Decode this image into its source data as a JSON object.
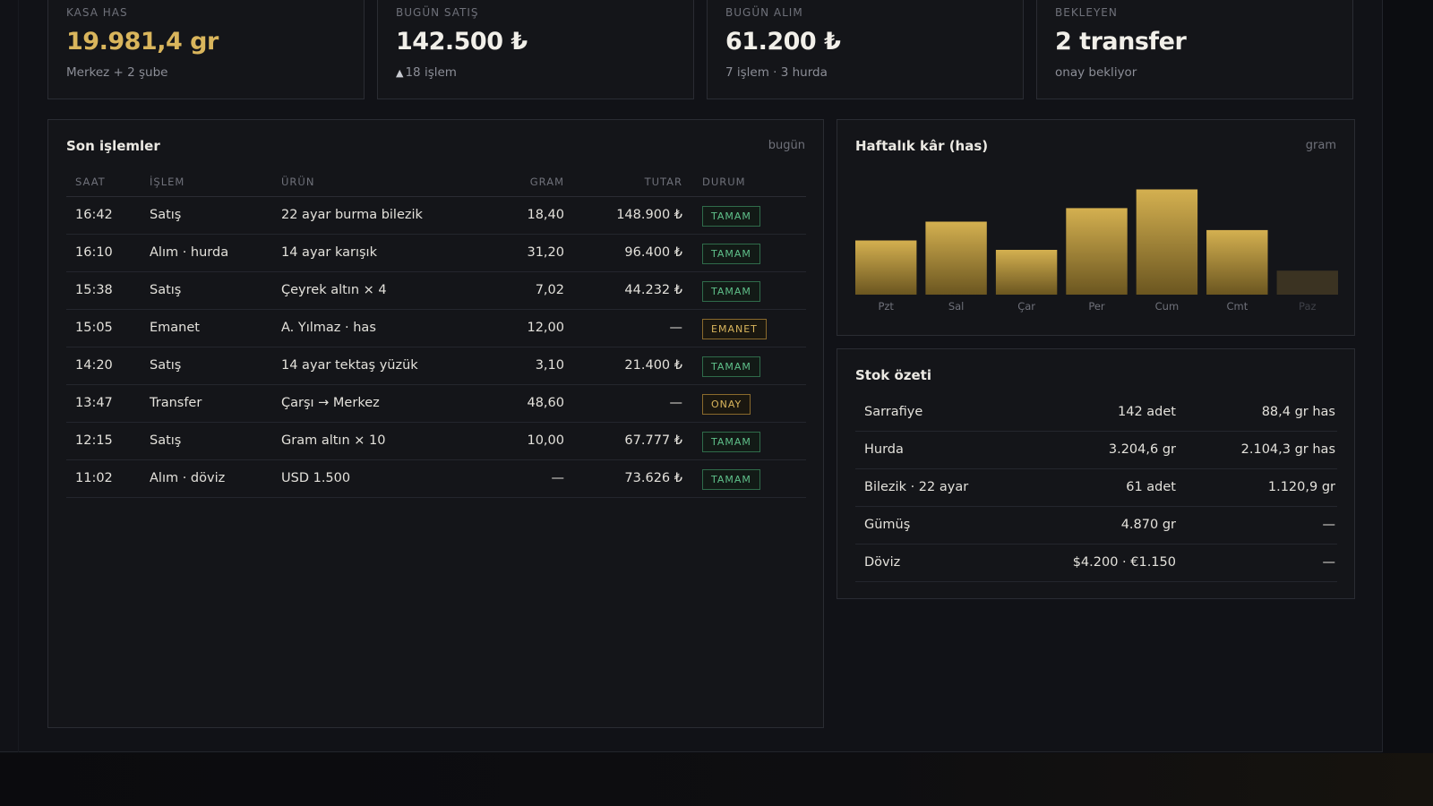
{
  "stats": [
    {
      "label": "KASA HAS",
      "value": "19.981,4 gr",
      "sub": "Merkez + 2 şube"
    },
    {
      "label": "BUGÜN SATIŞ",
      "value": "142.500 ₺",
      "sub_icon": "▲",
      "sub": "18 işlem"
    },
    {
      "label": "BUGÜN ALIM",
      "value": "61.200 ₺",
      "sub": "7 işlem · 3 hurda"
    },
    {
      "label": "BEKLEYEN",
      "value": "2 transfer",
      "sub": "onay bekliyor"
    }
  ],
  "transactions": {
    "title": "Son işlemler",
    "meta": "bugün",
    "columns": {
      "saat": "SAAT",
      "islem": "İŞLEM",
      "urun": "ÜRÜN",
      "gram": "GRAM",
      "tutar": "TUTAR",
      "durum": "DURUM"
    },
    "rows": [
      {
        "saat": "16:42",
        "islem": "Satış",
        "urun": "22 ayar burma bilezik",
        "gram": "18,40",
        "tutar": "148.900 ₺",
        "durum": "TAMAM"
      },
      {
        "saat": "16:10",
        "islem": "Alım · hurda",
        "urun": "14 ayar karışık",
        "gram": "31,20",
        "tutar": "96.400 ₺",
        "durum": "TAMAM"
      },
      {
        "saat": "15:38",
        "islem": "Satış",
        "urun": "Çeyrek altın × 4",
        "gram": "7,02",
        "tutar": "44.232 ₺",
        "durum": "TAMAM"
      },
      {
        "saat": "15:05",
        "islem": "Emanet",
        "urun": "A. Yılmaz · has",
        "gram": "12,00",
        "tutar": "—",
        "durum": "EMANET"
      },
      {
        "saat": "14:20",
        "islem": "Satış",
        "urun": "14 ayar tektaş yüzük",
        "gram": "3,10",
        "tutar": "21.400 ₺",
        "durum": "TAMAM"
      },
      {
        "saat": "13:47",
        "islem": "Transfer",
        "urun": "Çarşı → Merkez",
        "gram": "48,60",
        "tutar": "—",
        "durum": "ONAY"
      },
      {
        "saat": "12:15",
        "islem": "Satış",
        "urun": "Gram altın × 10",
        "gram": "10,00",
        "tutar": "67.777 ₺",
        "durum": "TAMAM"
      },
      {
        "saat": "11:02",
        "islem": "Alım · döviz",
        "urun": "USD 1.500",
        "gram": "—",
        "tutar": "73.626 ₺",
        "durum": "TAMAM"
      }
    ]
  },
  "weekly_chart": {
    "title": "Haftalık kâr (has)",
    "meta": "gram",
    "colors": {
      "bar_top": "#d4b050",
      "bar_bottom": "#6b5620",
      "muted": "#3b3322"
    }
  },
  "chart_data": {
    "type": "bar",
    "title": "Haftalık kâr (has)",
    "categories": [
      "Pzt",
      "Sal",
      "Çar",
      "Per",
      "Cum",
      "Cmt",
      "Paz"
    ],
    "values": [
      52,
      70,
      43,
      83,
      101,
      62,
      23
    ],
    "ylabel": "",
    "xlabel": "",
    "ylim": [
      0,
      110
    ],
    "grid": false
  },
  "stock": {
    "title": "Stok özeti",
    "rows": [
      {
        "name": "Sarrafiye",
        "qty": "142 adet",
        "has": "88,4 gr has"
      },
      {
        "name": "Hurda",
        "qty": "3.204,6 gr",
        "has": "2.104,3 gr has"
      },
      {
        "name": "Bilezik · 22 ayar",
        "qty": "61 adet",
        "has": "1.120,9 gr"
      },
      {
        "name": "Gümüş",
        "qty": "4.870 gr",
        "has": "—"
      },
      {
        "name": "Döviz",
        "qty": "$4.200 · €1.150",
        "has": "—"
      }
    ]
  }
}
